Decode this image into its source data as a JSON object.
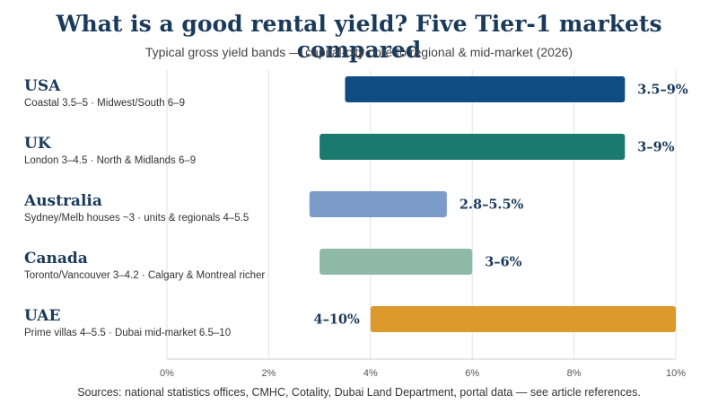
{
  "title": "What is a good rental yield? Five Tier-1 markets compared",
  "subtitle": "Typical gross yield bands — capital-city core to regional & mid-market (2026)",
  "footer": "Sources: national statistics offices, CMHC, Cotality, Dubai Land Department, portal data — see article references.",
  "chart_data": {
    "type": "bar",
    "orientation": "horizontal-range",
    "xlim": [
      0,
      10
    ],
    "ticks": [
      "0%",
      "2%",
      "4%",
      "6%",
      "8%",
      "10%"
    ],
    "tick_values": [
      0,
      2,
      4,
      6,
      8,
      10
    ],
    "grid": true,
    "bars": [
      {
        "category": "USA",
        "detail": "Coastal 3.5–5 · Midwest/South 6–9",
        "low": 3.5,
        "high": 9,
        "label": "3.5–9%",
        "color": "#0f4c81",
        "label_side": "right"
      },
      {
        "category": "UK",
        "detail": "London 3–4.5 · North & Midlands 6–9",
        "low": 3,
        "high": 9,
        "label": "3–9%",
        "color": "#1a7a6e",
        "label_side": "right"
      },
      {
        "category": "Australia",
        "detail": "Sydney/Melb houses ~3 · units & regionals 4–5.5",
        "low": 2.8,
        "high": 5.5,
        "label": "2.8–5.5%",
        "color": "#7b9cc9",
        "label_side": "right"
      },
      {
        "category": "Canada",
        "detail": "Toronto/Vancouver 3–4.2 · Calgary & Montreal richer",
        "low": 3,
        "high": 6,
        "label": "3–6%",
        "color": "#8fb9a8",
        "label_side": "right"
      },
      {
        "category": "UAE",
        "detail": "Prime villas 4–5.5 · Dubai mid-market 6.5–10",
        "low": 4,
        "high": 10,
        "label": "4–10%",
        "color": "#dc9a2c",
        "label_side": "left"
      }
    ]
  }
}
